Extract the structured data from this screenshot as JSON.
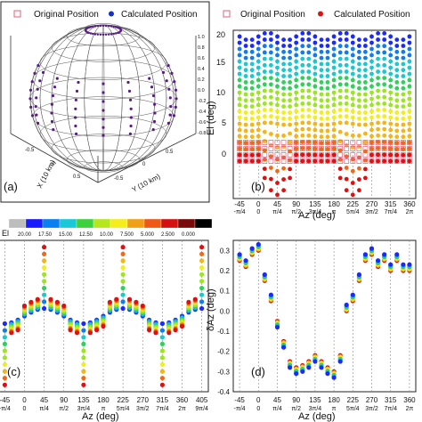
{
  "colors": {
    "axis": "#222222",
    "grid": "#888888",
    "mesh": "#555555",
    "original_marker": "#e0607a",
    "calculated_marker": "#1530c8",
    "calculated_red": "#e01010",
    "sphere_point": "#5a1a8a",
    "colormap": [
      "#bdbdbd",
      "#1a1aff",
      "#0a7ff2",
      "#19c9d8",
      "#3ed13e",
      "#b6e61c",
      "#f5ee1a",
      "#f0a018",
      "#ee5a16",
      "#d41010",
      "#7a0a0a",
      "#000000"
    ]
  },
  "panels": {
    "a": {
      "label": "(a)",
      "legend": [
        "Original Position",
        "Calculated Position"
      ],
      "xlabel": "X (10 km)",
      "ylabel": "Y (10 km)",
      "x_ticks": [
        "-0.5",
        "0",
        "0.5"
      ],
      "y_ticks": [
        "-0.5",
        "0",
        "0.5"
      ],
      "z_ticks": [
        "1.0",
        "0.8",
        "0.6",
        "0.4",
        "0.2",
        "0.0",
        "-0.2",
        "-0.4",
        "-0.6",
        "-0.8"
      ]
    },
    "b": {
      "label": "(b)",
      "legend": [
        "Original Position",
        "Calculated Position"
      ],
      "ylabel": "El (deg)",
      "xlabel": "Az (deg)",
      "y_ticks": [
        "0",
        "5",
        "10",
        "15",
        "20"
      ],
      "x_ticks": [
        "-45",
        "0",
        "45",
        "90",
        "135",
        "180",
        "225",
        "270",
        "315",
        "360"
      ],
      "x_ticks2": [
        "-π/4",
        "0",
        "π/4",
        "π/2",
        "3π/4",
        "π",
        "5π/4",
        "3π/2",
        "7π/4",
        "2π"
      ]
    },
    "colorbar": {
      "title": "El",
      "ticks": [
        "20.00",
        "17.50",
        "15.00",
        "12.50",
        "10.00",
        "7.500",
        "5.000",
        "2.500",
        "0.000"
      ]
    },
    "c": {
      "label": "(c)",
      "xlabel": "Az (deg)",
      "x_ticks": [
        "-45",
        "0",
        "45",
        "90",
        "135",
        "180",
        "225",
        "270",
        "315",
        "360",
        "405"
      ],
      "x_ticks2": [
        "-π/4",
        "0",
        "π/4",
        "π/2",
        "3π/4",
        "π",
        "5π/4",
        "3π/2",
        "7π/4",
        "2π",
        "9π/4"
      ]
    },
    "d": {
      "label": "(d)",
      "ylabel": "δAz (deg)",
      "xlabel": "Az (deg)",
      "y_ticks": [
        "0.3",
        "0.2",
        "0.1",
        "0.0",
        "-0.1",
        "-0.2",
        "-0.3",
        "-0.4"
      ],
      "x_ticks": [
        "-45",
        "0",
        "45",
        "90",
        "135",
        "180",
        "225",
        "270",
        "315",
        "360"
      ],
      "x_ticks2": [
        "-π/4",
        "0",
        "π/4",
        "π/2",
        "3π/4",
        "π",
        "5π/4",
        "3π/2",
        "7π/4",
        "2π"
      ]
    }
  },
  "chart_data": [
    {
      "type": "scatter",
      "panel": "a",
      "kind": "3d-sphere",
      "series": [
        {
          "name": "Original Position"
        },
        {
          "name": "Calculated Position"
        }
      ]
    },
    {
      "type": "scatter",
      "panel": "b",
      "xlabel": "Az (deg)",
      "ylabel": "El (deg)",
      "xlim": [
        -60,
        375
      ],
      "ylim": [
        -6,
        21
      ],
      "az_values": [
        -45,
        -30,
        -15,
        0,
        15,
        30,
        45,
        60,
        75,
        90,
        105,
        120,
        135,
        150,
        165,
        180,
        195,
        210,
        225,
        240,
        255,
        270,
        285,
        300,
        315,
        330,
        345,
        360
      ],
      "el_levels": [
        20,
        19,
        18,
        17,
        16,
        15,
        14,
        13,
        12,
        11,
        10,
        9,
        8,
        7,
        6,
        5,
        4,
        3,
        2,
        1,
        0
      ],
      "series": [
        {
          "name": "Original Position",
          "marker": "open-square"
        },
        {
          "name": "Calculated Position",
          "marker": "filled-circle",
          "color_by": "El"
        }
      ],
      "dip_minima": [
        {
          "az": 45,
          "el": -3
        },
        {
          "az": 225,
          "el": -5
        },
        {
          "az": -45,
          "el": -3
        },
        {
          "az": 360,
          "el": -2
        }
      ]
    },
    {
      "type": "scatter",
      "panel": "c",
      "xlabel": "Az (deg)",
      "xlim": [
        -60,
        420
      ],
      "ylim": [
        -1,
        1
      ],
      "az_values": [
        -45,
        -30,
        -15,
        0,
        15,
        30,
        45,
        60,
        75,
        90,
        105,
        120,
        135,
        150,
        165,
        180,
        195,
        210,
        225,
        240,
        255,
        270,
        285,
        300,
        315,
        330,
        345,
        360,
        375,
        390,
        405
      ],
      "series": [
        {
          "name": "Calculated Position",
          "color_by": "El"
        }
      ]
    },
    {
      "type": "scatter",
      "panel": "d",
      "xlabel": "Az (deg)",
      "ylabel": "δAz (deg)",
      "xlim": [
        -60,
        375
      ],
      "ylim": [
        -0.4,
        0.35
      ],
      "az_values": [
        -45,
        -30,
        -15,
        0,
        15,
        30,
        45,
        60,
        75,
        90,
        105,
        120,
        135,
        150,
        165,
        180,
        195,
        210,
        225,
        240,
        255,
        270,
        285,
        300,
        315,
        330,
        345,
        360
      ],
      "delta_az": [
        0.25,
        0.22,
        0.28,
        0.3,
        0.15,
        0.05,
        -0.05,
        -0.15,
        -0.25,
        -0.28,
        -0.27,
        -0.25,
        -0.22,
        -0.25,
        -0.28,
        -0.3,
        -0.22,
        0.0,
        0.05,
        0.15,
        0.25,
        0.28,
        0.22,
        0.25,
        0.2,
        0.25,
        0.2,
        0.2
      ],
      "series": [
        {
          "name": "Calculated Position",
          "color_by": "El"
        }
      ]
    }
  ]
}
